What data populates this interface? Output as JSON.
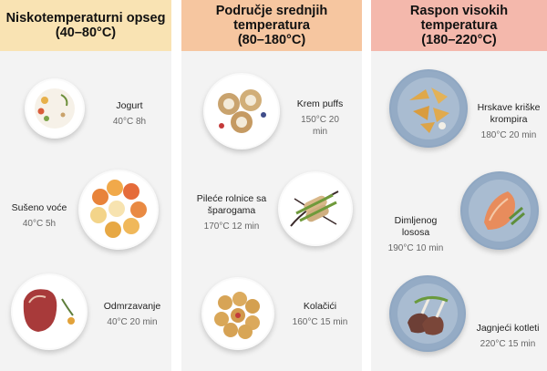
{
  "columns": [
    {
      "title": "Niskotemperaturni opseg\n(40–80°C)",
      "items": [
        {
          "name": "Jogurt",
          "temp": "40°C 8h"
        },
        {
          "name": "Sušeno voće",
          "temp": "40°C 5h"
        },
        {
          "name": "Odmrzavanje",
          "temp": "40°C 20 min"
        }
      ]
    },
    {
      "title": "Područje srednjih temperatura\n(80–180°C)",
      "items": [
        {
          "name": "Krem puffs",
          "temp": "150°C 20 min"
        },
        {
          "name": "Pileće rolnice sa\nšparogama",
          "temp": "170°C 12 min"
        },
        {
          "name": "Kolačići",
          "temp": "160°C 15 min"
        }
      ]
    },
    {
      "title": "Raspon visokih\ntemperatura\n(180–220°C)",
      "items": [
        {
          "name": "Hrskave kriške\nkrompira",
          "temp": "180°C 20 min"
        },
        {
          "name": "Dimljenog\nlososa",
          "temp": "190°C 10 min"
        },
        {
          "name": "Jagnjeći kotleti",
          "temp": "220°C 15 min"
        }
      ]
    }
  ],
  "colors": {
    "low_header": "#f9e3b3",
    "mid_header": "#f6c6a0",
    "high_header": "#f4b8ac",
    "blue_plate": "#8fa7c2"
  },
  "icons": [
    "yogurt-plate-icon",
    "dried-fruit-plate-icon",
    "steak-plate-icon",
    "cream-puff-plate-icon",
    "chicken-roll-plate-icon",
    "cookie-plate-icon",
    "potato-wedges-plate-icon",
    "salmon-plate-icon",
    "lamb-chops-plate-icon"
  ]
}
